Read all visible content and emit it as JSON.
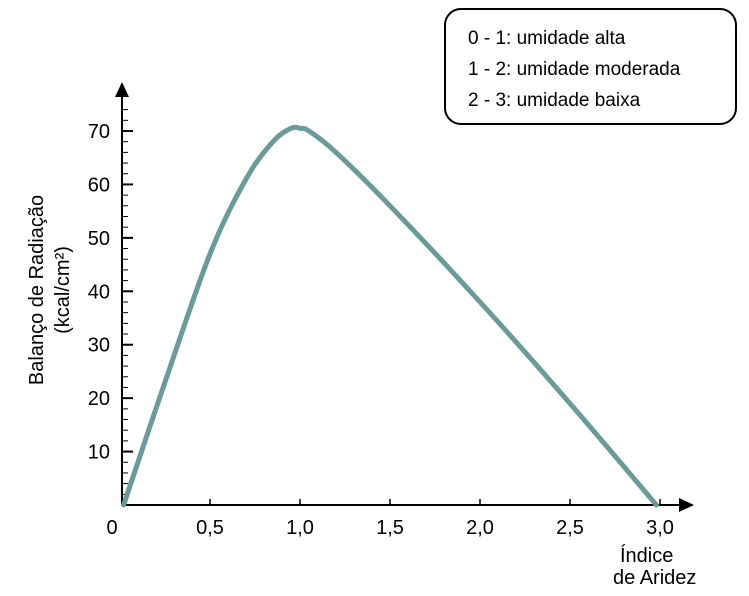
{
  "chart_data": {
    "type": "line",
    "xlabel_lines": [
      "Índice",
      "de Aridez"
    ],
    "ylabel_lines": [
      "Balanço de Radiação",
      "(kcal/cm²)"
    ],
    "xlim": [
      0,
      3.0
    ],
    "ylim": [
      0,
      70
    ],
    "x_ticks": [
      {
        "value": 0,
        "label": "0"
      },
      {
        "value": 0.5,
        "label": "0,5"
      },
      {
        "value": 1.0,
        "label": "1,0"
      },
      {
        "value": 1.5,
        "label": "1,5"
      },
      {
        "value": 2.0,
        "label": "2,0"
      },
      {
        "value": 2.5,
        "label": "2,5"
      },
      {
        "value": 3.0,
        "label": "3,0"
      }
    ],
    "y_ticks": [
      {
        "value": 10,
        "label": "10"
      },
      {
        "value": 20,
        "label": "20"
      },
      {
        "value": 30,
        "label": "30"
      },
      {
        "value": 40,
        "label": "40"
      },
      {
        "value": 50,
        "label": "50"
      },
      {
        "value": 60,
        "label": "60"
      },
      {
        "value": 70,
        "label": "70"
      }
    ],
    "series": [
      {
        "color": "#6a9a9a",
        "x": [
          0.02,
          0.25,
          0.5,
          0.7,
          0.85,
          0.95,
          1.0,
          1.05,
          1.2,
          1.5,
          2.0,
          2.5,
          2.98
        ],
        "y": [
          0,
          23,
          47,
          61,
          68,
          70.5,
          70.5,
          70,
          66,
          56,
          38,
          19,
          0
        ]
      }
    ],
    "legend": {
      "position": "top-right",
      "entries": [
        "0 - 1: umidade alta",
        "1 - 2: umidade moderada",
        "2 - 3: umidade baixa"
      ]
    },
    "grid": false
  }
}
